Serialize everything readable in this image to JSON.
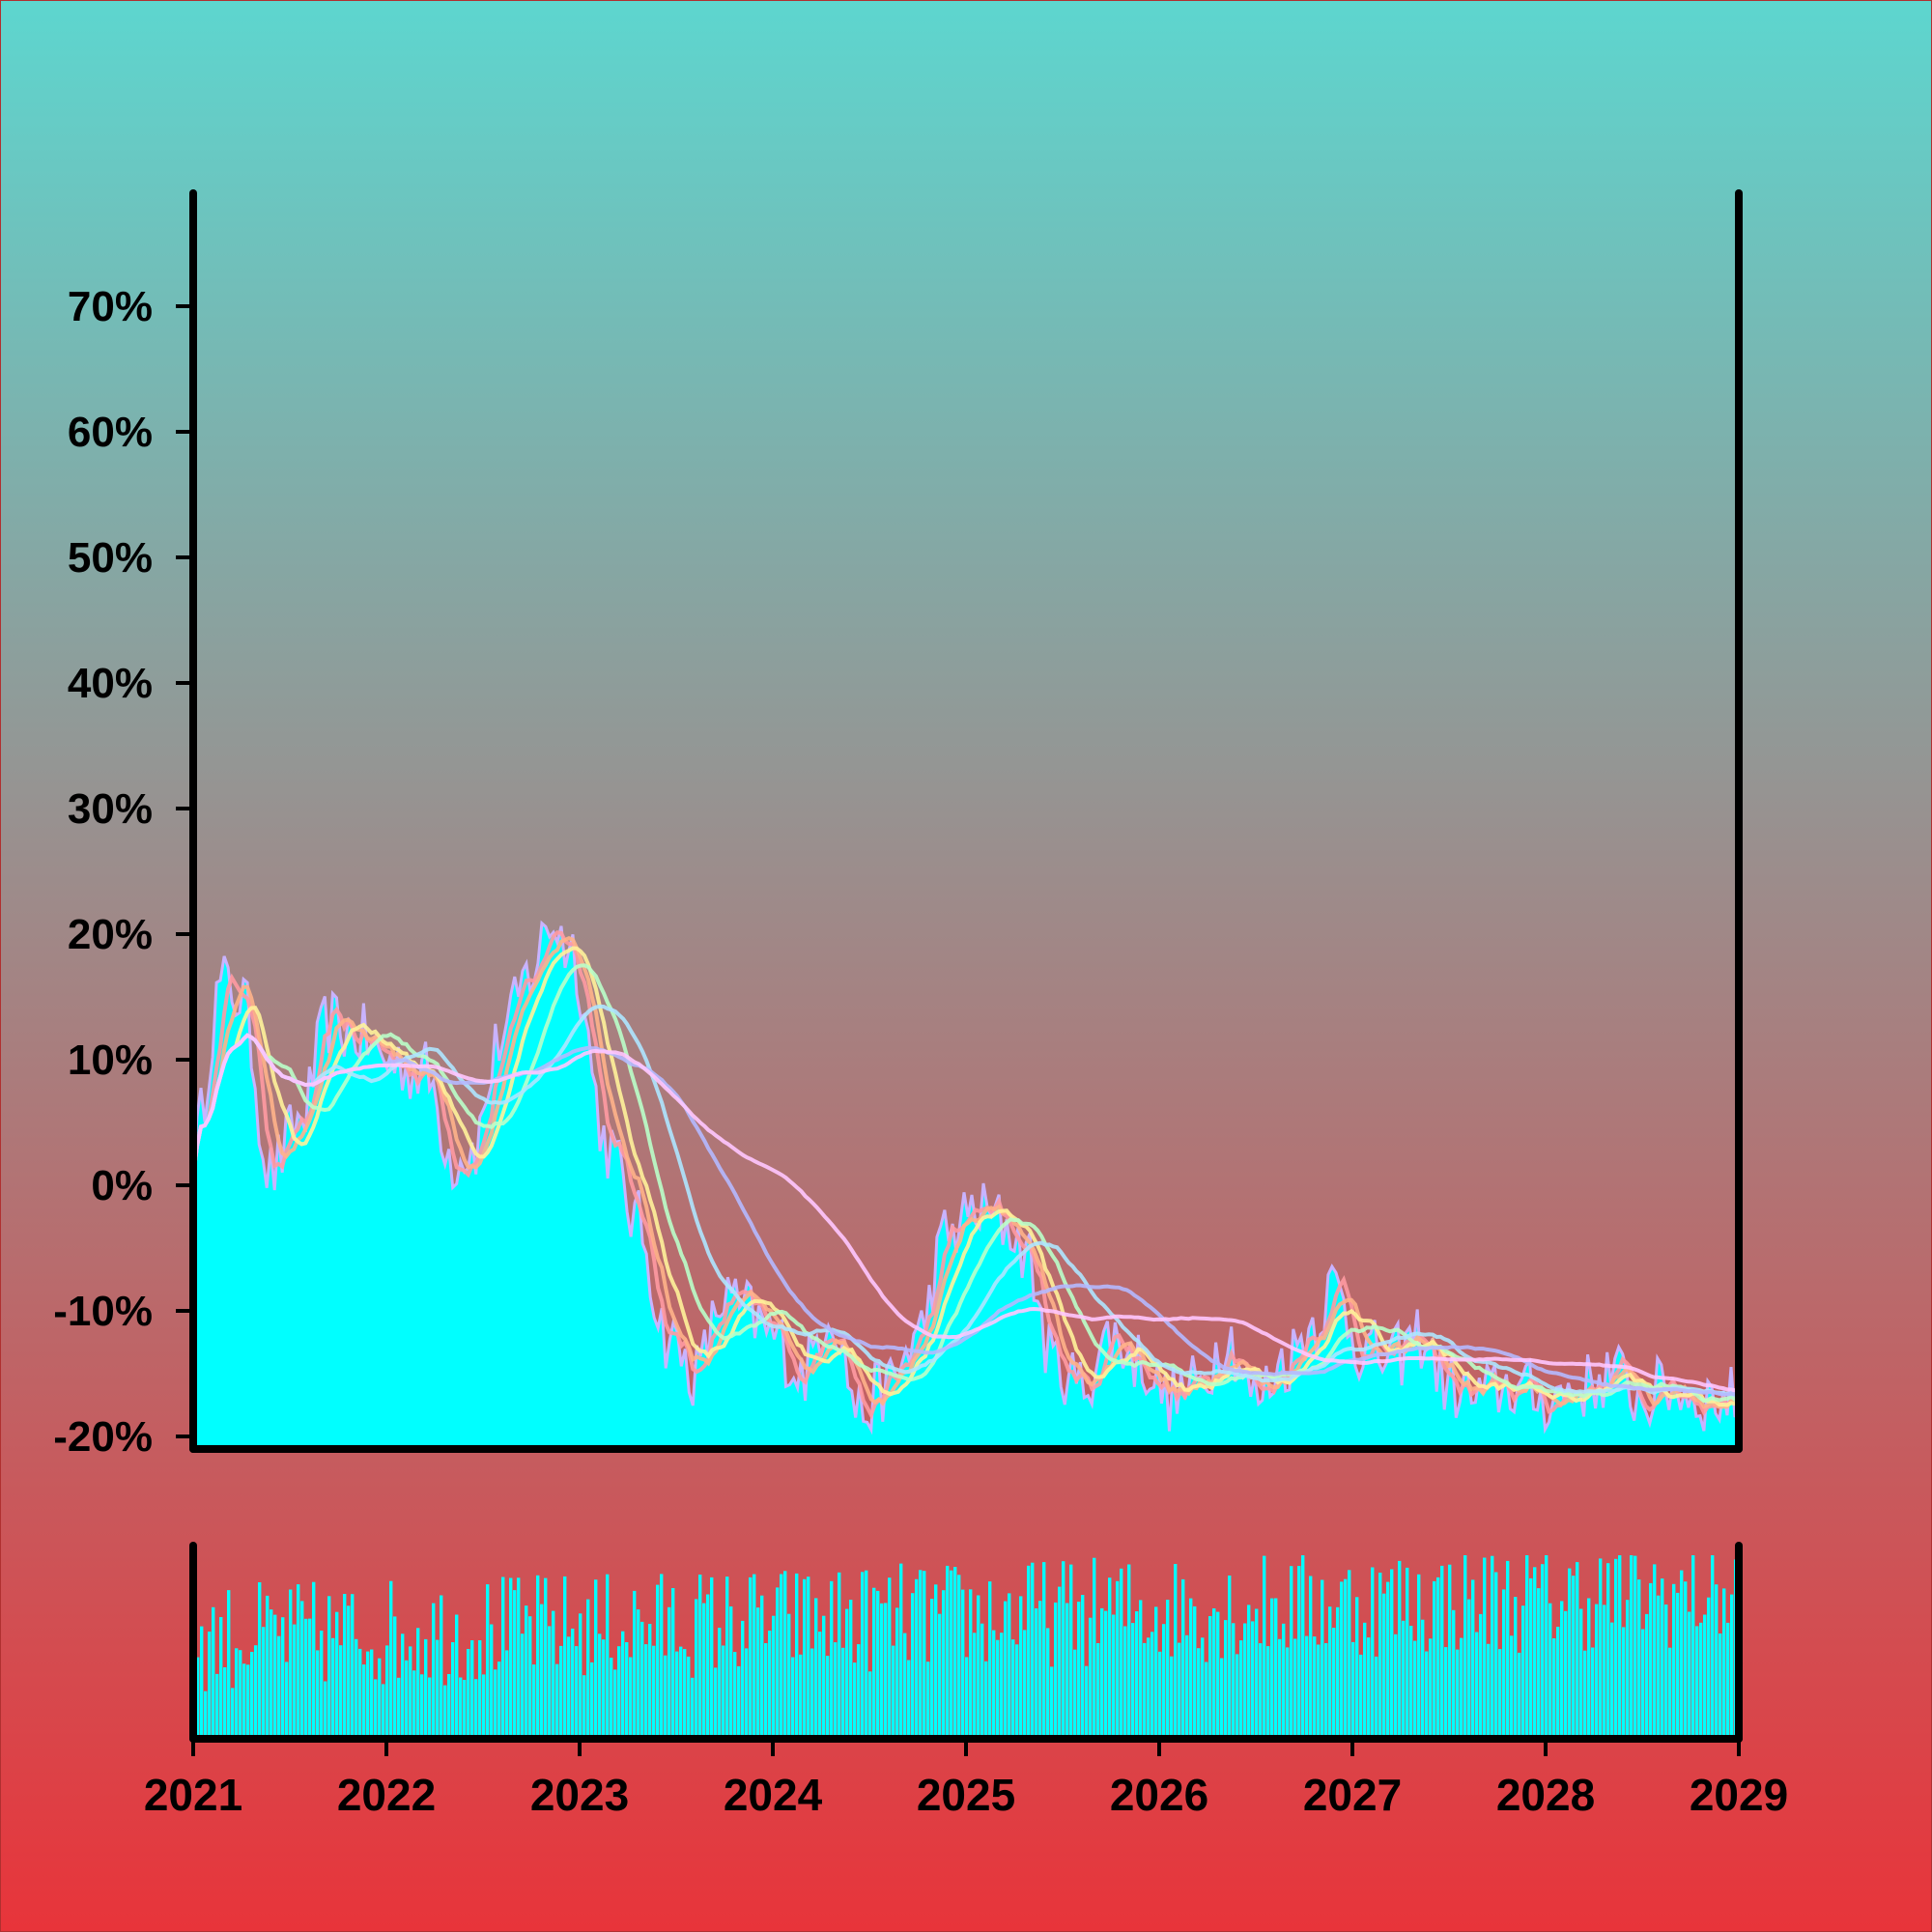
{
  "chart_data": [
    {
      "type": "line",
      "title": "",
      "xlabel": "",
      "ylabel": "",
      "x_ticks": [
        "2021",
        "2022",
        "2023",
        "2024",
        "2025",
        "2026",
        "2027",
        "2028",
        "2029"
      ],
      "y_ticks": [
        "-20%",
        "-10%",
        "0%",
        "10%",
        "20%",
        "30%",
        "40%",
        "50%",
        "60%",
        "70%"
      ],
      "xlim": [
        "2021",
        "2029"
      ],
      "ylim": [
        -21,
        79
      ],
      "grid": false,
      "legend": "none",
      "colors": {
        "background_top": "#5dd6cf",
        "background_bottom": "#e8343a",
        "area_fill": "#00ffff",
        "price_line": "#c9b3ff",
        "axis": "#000000",
        "ma_lines": [
          "#ff9aa2",
          "#ffb38a",
          "#fff29a",
          "#baffc9",
          "#aee6ff",
          "#b5b9ff",
          "#ffc6ff"
        ]
      },
      "anchors": {
        "x": [
          2021.0,
          2021.15,
          2021.25,
          2021.4,
          2021.55,
          2021.7,
          2021.85,
          2022.0,
          2022.2,
          2022.35,
          2022.45,
          2022.6,
          2022.75,
          2022.85,
          2022.95,
          2023.15,
          2023.3,
          2023.45,
          2023.6,
          2023.75,
          2023.85,
          2024.0,
          2024.15,
          2024.3,
          2024.45,
          2024.6,
          2024.75,
          2024.9,
          2025.05,
          2025.2,
          2025.3,
          2025.45,
          2025.6,
          2025.75,
          2025.9,
          2026.05,
          2026.2,
          2026.35,
          2026.5,
          2026.65,
          2026.8,
          2026.9,
          2027.05,
          2027.2,
          2027.35,
          2027.5,
          2027.65,
          2027.8,
          2028.0,
          2028.2,
          2028.35,
          2028.5,
          2028.65,
          2028.8,
          2029.0
        ],
        "y": [
          3,
          16,
          15,
          1,
          5,
          13,
          12,
          10,
          9,
          2,
          3,
          12,
          17,
          21,
          19,
          3,
          -3,
          -12,
          -15,
          -9,
          -10,
          -12,
          -15,
          -10,
          -18,
          -16,
          -12,
          -4,
          -2,
          -3,
          -5,
          -14,
          -16,
          -12,
          -14,
          -17,
          -16,
          -12,
          -17,
          -14,
          -11,
          -8,
          -13,
          -14,
          -12,
          -16,
          -17,
          -16,
          -17,
          -16,
          -15,
          -17,
          -16,
          -17,
          -17
        ]
      },
      "volume_panel": {
        "type": "bar",
        "series_name": "",
        "relative_scale": [
          0,
          1
        ]
      }
    }
  ]
}
